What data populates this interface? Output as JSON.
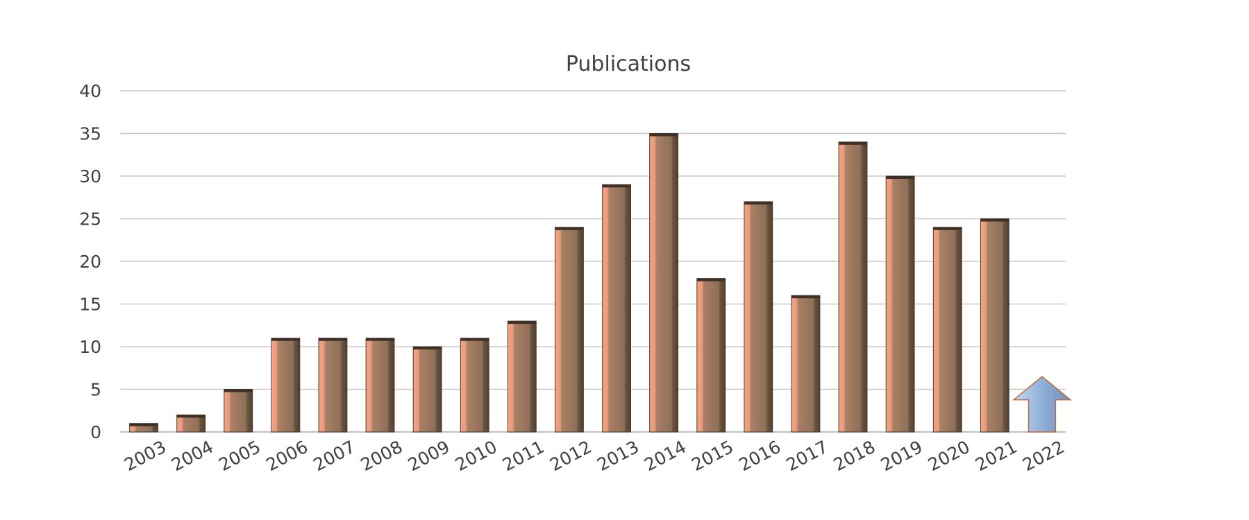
{
  "chart_data": {
    "type": "bar",
    "title": "Publications",
    "xlabel": "",
    "ylabel": "",
    "categories": [
      "2003",
      "2004",
      "2005",
      "2006",
      "2007",
      "2008",
      "2009",
      "2010",
      "2011",
      "2012",
      "2013",
      "2014",
      "2015",
      "2016",
      "2017",
      "2018",
      "2019",
      "2020",
      "2021",
      "2022"
    ],
    "values": [
      1,
      2,
      5,
      11,
      11,
      11,
      10,
      11,
      13,
      24,
      29,
      35,
      18,
      27,
      16,
      34,
      30,
      24,
      25,
      null
    ],
    "ylim": [
      0,
      40
    ],
    "yticks": [
      0,
      5,
      10,
      15,
      20,
      25,
      30,
      35,
      40
    ],
    "grid": true,
    "legend": "none",
    "bar_color": "#a07a5e",
    "bar_highlight": "#f2a585",
    "bar_shadow": "#5e4a3a",
    "arrow_category": "2022",
    "arrow_value": 6.5,
    "arrow_color": "#8fb0d8",
    "arrow_icon": "up-arrow-icon"
  }
}
